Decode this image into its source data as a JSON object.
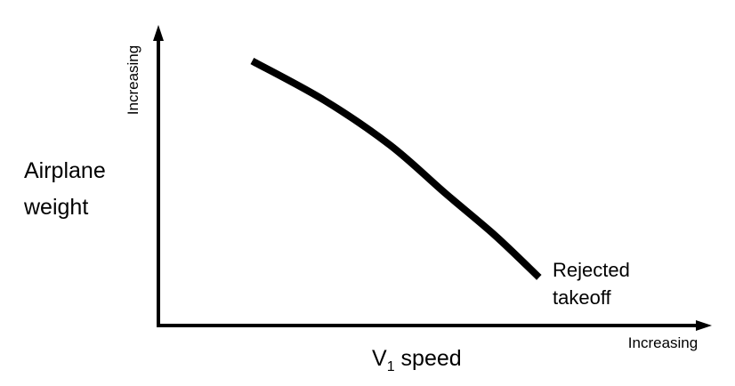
{
  "chart_data": {
    "type": "line",
    "title": "",
    "x_axis": {
      "label": "V1 speed",
      "label_main": "V",
      "label_sub": "1",
      "label_rest": " speed",
      "direction_label": "Increasing",
      "ticks": []
    },
    "y_axis": {
      "label_lines": [
        "Airplane",
        "weight"
      ],
      "direction_label": "Increasing",
      "ticks": []
    },
    "xlim": [
      0,
      1
    ],
    "ylim": [
      0,
      1
    ],
    "grid": false,
    "legend": "none",
    "series": [
      {
        "color": "#000000",
        "x": [
          0.17,
          0.3,
          0.42,
          0.52,
          0.61,
          0.69
        ],
        "y": [
          0.88,
          0.75,
          0.6,
          0.44,
          0.3,
          0.16
        ]
      }
    ],
    "annotations": [
      {
        "lines": [
          "Rejected",
          "takeoff"
        ],
        "x": 0.69,
        "y": 0.16
      }
    ]
  }
}
